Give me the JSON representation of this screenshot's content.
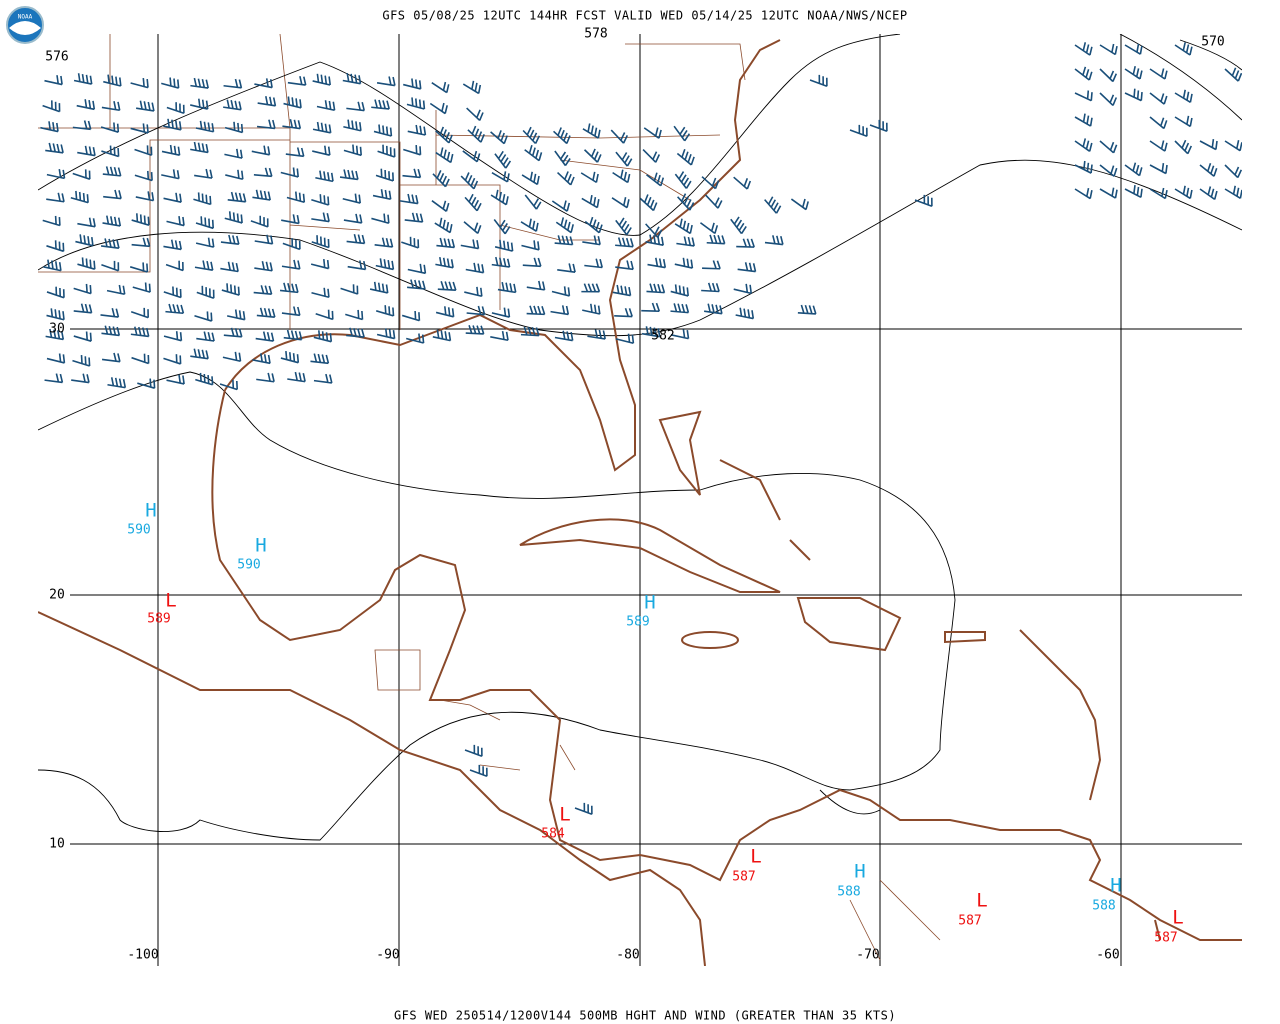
{
  "header": {
    "title": "GFS 05/08/25 12UTC 144HR FCST VALID WED 05/14/25 12UTC NOAA/NWS/NCEP"
  },
  "footer": {
    "caption": "GFS WED 250514/1200V144 500MB HGHT AND WIND (GREATER THAN 35 KTS)"
  },
  "logo": {
    "label": "NOAA"
  },
  "latitude_labels": [
    30,
    20,
    10
  ],
  "longitude_labels": [
    -100,
    -90,
    -80,
    -70,
    -60
  ],
  "contour_labels": [
    576,
    578,
    570,
    582
  ],
  "centers": [
    {
      "symbol": "H",
      "value": 590
    },
    {
      "symbol": "H",
      "value": 590
    },
    {
      "symbol": "L",
      "value": 589
    },
    {
      "symbol": "H",
      "value": 589
    },
    {
      "symbol": "L",
      "value": 584
    },
    {
      "symbol": "L",
      "value": 587
    },
    {
      "symbol": "H",
      "value": 588
    },
    {
      "symbol": "L",
      "value": 587
    },
    {
      "symbol": "H",
      "value": 588
    },
    {
      "symbol": "L",
      "value": 587
    }
  ]
}
